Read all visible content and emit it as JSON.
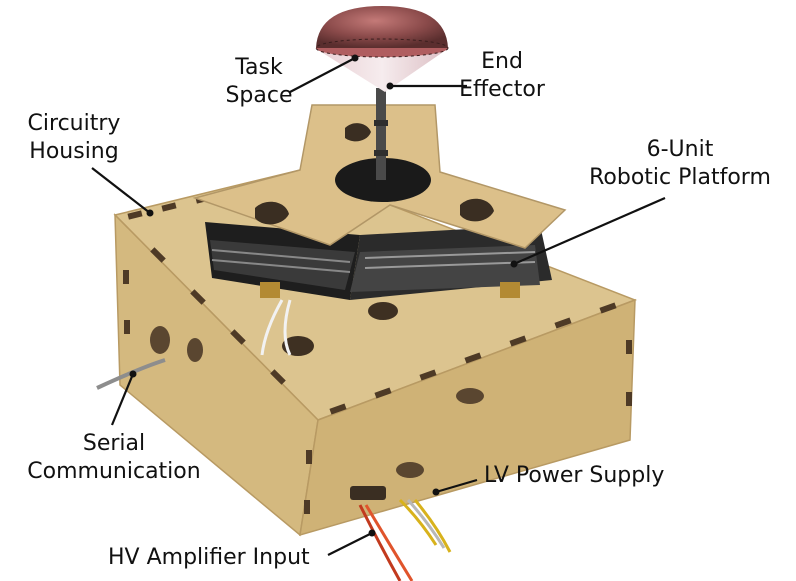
{
  "labels": {
    "task_space": [
      "Task",
      "Space"
    ],
    "end_effector": [
      "End",
      "Effector"
    ],
    "circuitry_housing": [
      "Circuitry",
      "Housing"
    ],
    "robotic_platform": [
      "6-Unit",
      "Robotic Platform"
    ],
    "serial_communication": [
      "Serial",
      "Communication"
    ],
    "lv_power_supply": "LV Power Supply",
    "hv_amplifier_input": "HV Amplifier Input"
  },
  "colors": {
    "wood": "#d8bf8a",
    "wood_dark": "#c4a671",
    "wood_slot": "#5a4630",
    "pcb": "#2a2a2a",
    "dome": "#8a4a4a",
    "leader": "#111111",
    "wire_red": "#c23a1e",
    "wire_yellow": "#d8b21c",
    "wire_grey": "#8d8d8d"
  }
}
